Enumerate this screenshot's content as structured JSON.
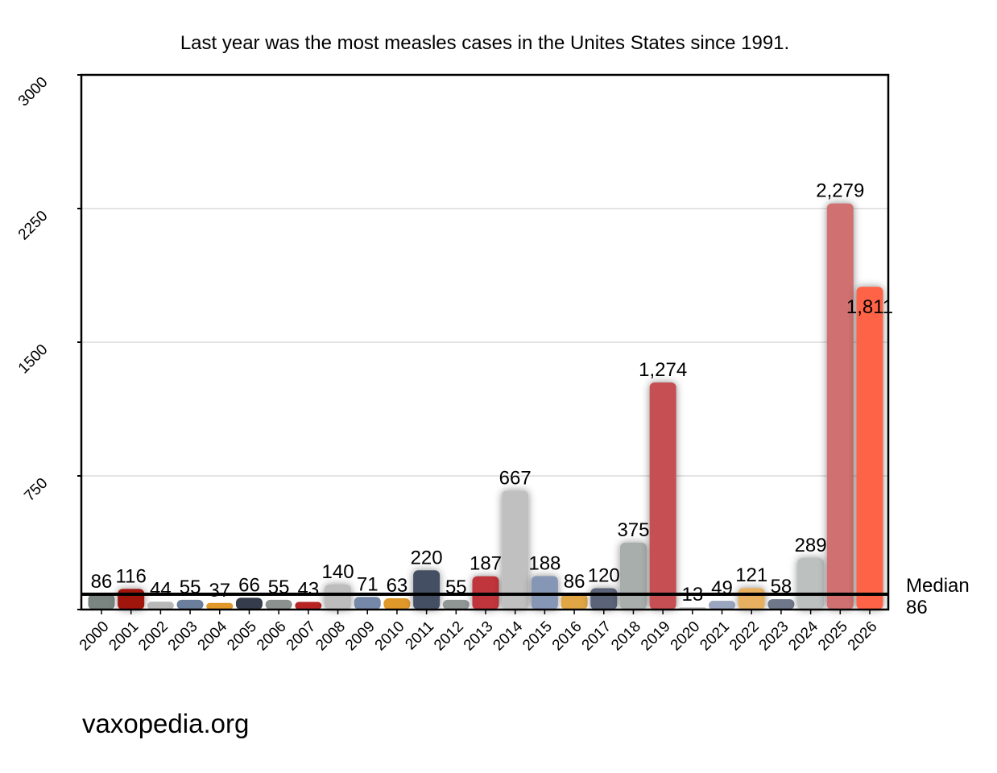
{
  "chart_data": {
    "type": "bar",
    "title": "Last year was the most measles cases in the Unites States since 1991.",
    "xlabel": "",
    "ylabel": "",
    "ylim": [
      0,
      3000
    ],
    "yticks": [
      "750",
      "1500",
      "2250",
      "3000"
    ],
    "grid": true,
    "categories": [
      "2000",
      "2001",
      "2002",
      "2003",
      "2004",
      "2005",
      "2006",
      "2007",
      "2008",
      "2009",
      "2010",
      "2011",
      "2012",
      "2013",
      "2014",
      "2015",
      "2016",
      "2017",
      "2018",
      "2019",
      "2020",
      "2021",
      "2022",
      "2023",
      "2024",
      "2025",
      "2026"
    ],
    "values": [
      86,
      116,
      44,
      55,
      37,
      66,
      55,
      43,
      140,
      71,
      63,
      220,
      55,
      187,
      667,
      188,
      86,
      120,
      375,
      1274,
      13,
      49,
      121,
      58,
      289,
      2279,
      1811
    ],
    "value_labels": [
      "86",
      "116",
      "44",
      "55",
      "37",
      "66",
      "55",
      "43",
      "140",
      "71",
      "63",
      "220",
      "55",
      "187",
      "667",
      "188",
      "86",
      "120",
      "375",
      "1,274",
      "13",
      "49",
      "121",
      "58",
      "289",
      "2,279",
      "1,811"
    ],
    "colors": [
      "#7a8481",
      "#a0140f",
      "#b8b8b8",
      "#6b7e9c",
      "#e0982a",
      "#353d4c",
      "#8a918f",
      "#b82424",
      "#bdbdbd",
      "#7588a8",
      "#e0982a",
      "#454f63",
      "#8f9694",
      "#c0343a",
      "#c0c0c0",
      "#8597b5",
      "#e0a545",
      "#5a6478",
      "#a8aeac",
      "#c65052",
      "#c8c8c8",
      "#9aa6bf",
      "#e6b060",
      "#6f788a",
      "#bcc0bf",
      "#d07070",
      "#ff6347"
    ],
    "median": {
      "value": 86,
      "label": "Median",
      "value_label": "86"
    }
  },
  "footer": "vaxopedia.org"
}
